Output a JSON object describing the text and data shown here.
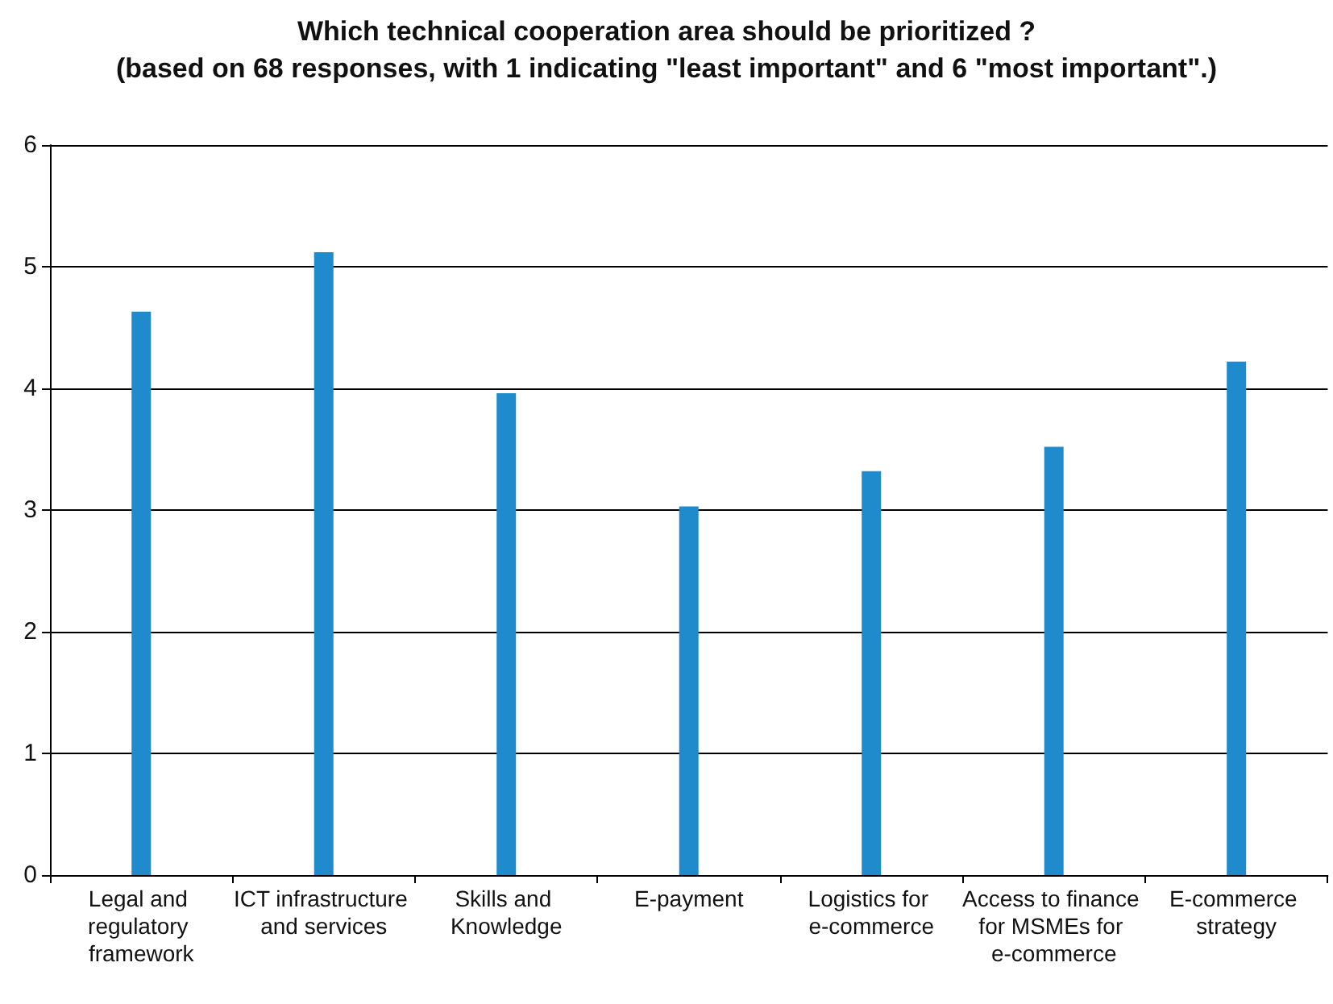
{
  "chart_data": {
    "type": "bar",
    "title": "Which technical cooperation area should be prioritized ?",
    "subtitle": "(based on 68 responses, with 1 indicating \"least important\" and 6 \"most important\".)",
    "categories": [
      "Legal and regulatory framework",
      "ICT infrastructure and services",
      "Skills and Knowledge",
      "E-payment",
      "Logistics for e-commerce",
      "Access to finance for MSMEs for e-commerce",
      "E-commerce strategy"
    ],
    "values": [
      4.63,
      5.12,
      3.96,
      3.03,
      3.32,
      3.52,
      4.22
    ],
    "color": "#1f8bcc",
    "ylim": [
      0,
      6
    ],
    "yticks": [
      0,
      1,
      2,
      3,
      4,
      5,
      6
    ],
    "grid": "y"
  }
}
